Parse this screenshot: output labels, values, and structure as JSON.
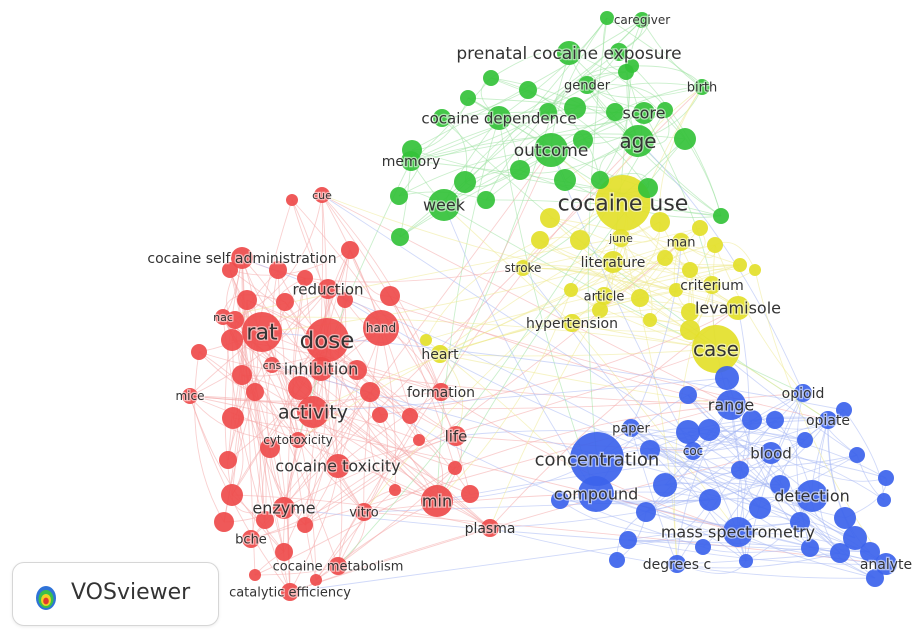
{
  "app": {
    "name": "VOSviewer"
  },
  "colors": {
    "red": "#ee4b4b",
    "green": "#34c23a",
    "yellow": "#e3df2a",
    "blue": "#3c63eb"
  },
  "clusters": [
    {
      "name": "red",
      "items": [
        {
          "label": "cue"
        },
        {
          "label": "cocaine self administration"
        },
        {
          "label": "reduction"
        },
        {
          "label": "nac"
        },
        {
          "label": "rat"
        },
        {
          "label": "dose"
        },
        {
          "label": "hand"
        },
        {
          "label": "cns"
        },
        {
          "label": "inhibition"
        },
        {
          "label": "mice"
        },
        {
          "label": "activity"
        },
        {
          "label": "formation"
        },
        {
          "label": "cytotoxicity"
        },
        {
          "label": "life"
        },
        {
          "label": "cocaine toxicity"
        },
        {
          "label": "enzyme"
        },
        {
          "label": "vitro"
        },
        {
          "label": "min"
        },
        {
          "label": "plasma"
        },
        {
          "label": "bche"
        },
        {
          "label": "cocaine metabolism"
        },
        {
          "label": "catalytic efficiency"
        }
      ]
    },
    {
      "name": "green",
      "items": [
        {
          "label": "caregiver"
        },
        {
          "label": "prenatal cocaine exposure"
        },
        {
          "label": "gender"
        },
        {
          "label": "birth"
        },
        {
          "label": "cocaine dependence"
        },
        {
          "label": "score"
        },
        {
          "label": "age"
        },
        {
          "label": "outcome"
        },
        {
          "label": "memory"
        },
        {
          "label": "week"
        }
      ]
    },
    {
      "name": "yellow",
      "items": [
        {
          "label": "cocaine use"
        },
        {
          "label": "june"
        },
        {
          "label": "man"
        },
        {
          "label": "stroke"
        },
        {
          "label": "literature"
        },
        {
          "label": "criterium"
        },
        {
          "label": "article"
        },
        {
          "label": "levamisole"
        },
        {
          "label": "hypertension"
        },
        {
          "label": "case"
        },
        {
          "label": "heart"
        }
      ]
    },
    {
      "name": "blue",
      "items": [
        {
          "label": "opioid"
        },
        {
          "label": "range"
        },
        {
          "label": "opiate"
        },
        {
          "label": "paper"
        },
        {
          "label": "concentration"
        },
        {
          "label": "coc"
        },
        {
          "label": "blood"
        },
        {
          "label": "compound"
        },
        {
          "label": "detection"
        },
        {
          "label": "mass spectrometry"
        },
        {
          "label": "degrees c"
        },
        {
          "label": "analyte"
        }
      ]
    }
  ]
}
